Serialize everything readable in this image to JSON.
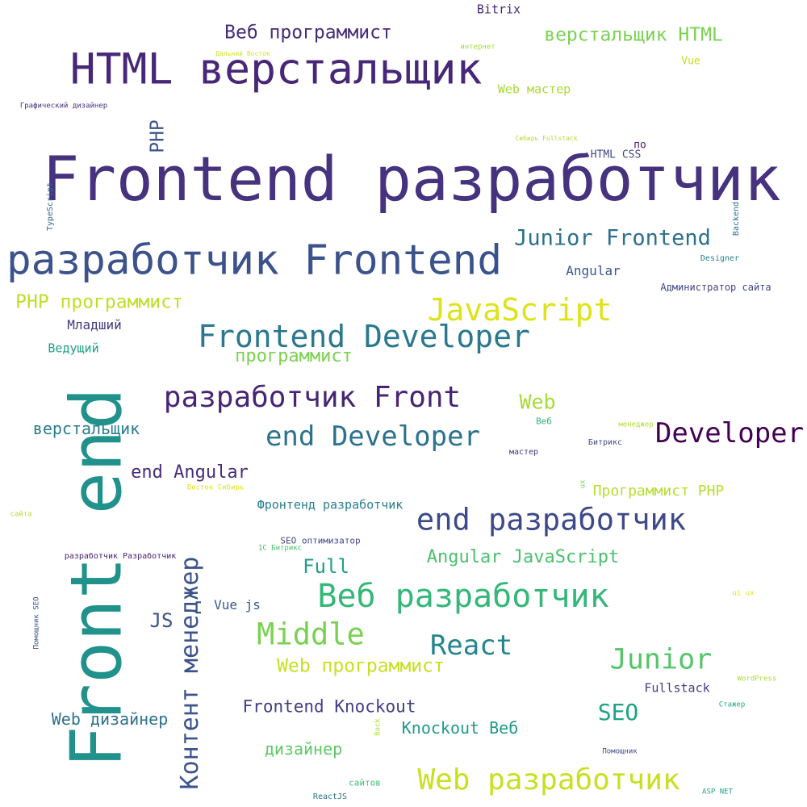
{
  "words": [
    {
      "text": "Bitrix",
      "color": "#482878"
    },
    {
      "text": "Веб программист",
      "color": "#472c7a"
    },
    {
      "text": "интернет",
      "color": "#a2da37"
    },
    {
      "text": "верстальщик HTML",
      "color": "#7ad151"
    },
    {
      "text": "Дальний Восток",
      "color": "#d2e21b"
    },
    {
      "text": "HTML верстальщик",
      "color": "#472777"
    },
    {
      "text": "Vue",
      "color": "#c2df23"
    },
    {
      "text": "Web мастер",
      "color": "#a8db34"
    },
    {
      "text": "Графический дизайнер",
      "color": "#46307e"
    },
    {
      "text": "PHP",
      "color": "#3b528b"
    },
    {
      "text": "Сибирь Fullstack",
      "color": "#b5de2b"
    },
    {
      "text": "по",
      "color": "#48186a"
    },
    {
      "text": "HTML CSS",
      "color": "#3e4989"
    },
    {
      "text": "Frontend разработчик",
      "color": "#46327e"
    },
    {
      "text": "TypeScript",
      "color": "#31688e"
    },
    {
      "text": "Backend",
      "color": "#2c728e"
    },
    {
      "text": "Junior Frontend",
      "color": "#2d708e"
    },
    {
      "text": "разработчик Frontend",
      "color": "#3b528b"
    },
    {
      "text": "Designer",
      "color": "#25848e"
    },
    {
      "text": "Angular",
      "color": "#39558c"
    },
    {
      "text": "Администратор сайта",
      "color": "#404688"
    },
    {
      "text": "PHP программист",
      "color": "#bddf26"
    },
    {
      "text": "JavaScript",
      "color": "#dde318"
    },
    {
      "text": "Младший",
      "color": "#453781"
    },
    {
      "text": "Frontend Developer",
      "color": "#2a788e"
    },
    {
      "text": "Ведущий",
      "color": "#1fa187"
    },
    {
      "text": "программист",
      "color": "#7ad151"
    },
    {
      "text": "разработчик Front",
      "color": "#482475"
    },
    {
      "text": "Web",
      "color": "#a5db36"
    },
    {
      "text": "Веб",
      "color": "#2fb47c"
    },
    {
      "text": "менеджер",
      "color": "#b2dd2d"
    },
    {
      "text": "верстальщик",
      "color": "#287d8e"
    },
    {
      "text": "end Developer",
      "color": "#2c728e"
    },
    {
      "text": "Developer",
      "color": "#440154"
    },
    {
      "text": "Битрикс",
      "color": "#3e4989"
    },
    {
      "text": "мастер",
      "color": "#443983"
    },
    {
      "text": "Front end",
      "color": "#21918c"
    },
    {
      "text": "end Angular",
      "color": "#472d7b"
    },
    {
      "text": "Восток Сибирь",
      "color": "#dde318"
    },
    {
      "text": "ux",
      "color": "#73d056"
    },
    {
      "text": "Программист PHP",
      "color": "#b5de2b"
    },
    {
      "text": "сайта",
      "color": "#b2dd2d"
    },
    {
      "text": "Фронтенд разработчик",
      "color": "#277f8e"
    },
    {
      "text": "end разработчик",
      "color": "#3e4989"
    },
    {
      "text": "SEO оптимизатор",
      "color": "#3f4788"
    },
    {
      "text": "1С Битрикс",
      "color": "#44bf70"
    },
    {
      "text": "разработчик Разработчик",
      "color": "#481c6e"
    },
    {
      "text": "Контент менеджер",
      "color": "#3b528b"
    },
    {
      "text": "Full",
      "color": "#1f9e89"
    },
    {
      "text": "Angular JavaScript",
      "color": "#4ac16d"
    },
    {
      "text": "Помощник SEO",
      "color": "#3b528b"
    },
    {
      "text": "Веб разработчик",
      "color": "#35b779"
    },
    {
      "text": "ui ux",
      "color": "#dde318"
    },
    {
      "text": "Vue js",
      "color": "#38588c"
    },
    {
      "text": "JS",
      "color": "#3b528b"
    },
    {
      "text": "Middle",
      "color": "#7ad151"
    },
    {
      "text": "React",
      "color": "#25848e"
    },
    {
      "text": "Junior",
      "color": "#54c568"
    },
    {
      "text": "Web программист",
      "color": "#c8e020"
    },
    {
      "text": "WordPress",
      "color": "#a8db34"
    },
    {
      "text": "Fullstack",
      "color": "#433e85"
    },
    {
      "text": "Frontend Knockout",
      "color": "#433e85"
    },
    {
      "text": "Стажер",
      "color": "#22a884"
    },
    {
      "text": "SEO",
      "color": "#1fa187"
    },
    {
      "text": "Web дизайнер",
      "color": "#2d708e"
    },
    {
      "text": "Knockout Веб",
      "color": "#1f9a8a"
    },
    {
      "text": "Back",
      "color": "#b5de2b"
    },
    {
      "text": "дизайнер",
      "color": "#5ec962"
    },
    {
      "text": "Помощник",
      "color": "#3e4989"
    },
    {
      "text": "Web разработчик",
      "color": "#c8e020"
    },
    {
      "text": "сайтов",
      "color": "#3bbb75"
    },
    {
      "text": "ASP NET",
      "color": "#1fa187"
    },
    {
      "text": "ReactJS",
      "color": "#2c728e"
    }
  ]
}
